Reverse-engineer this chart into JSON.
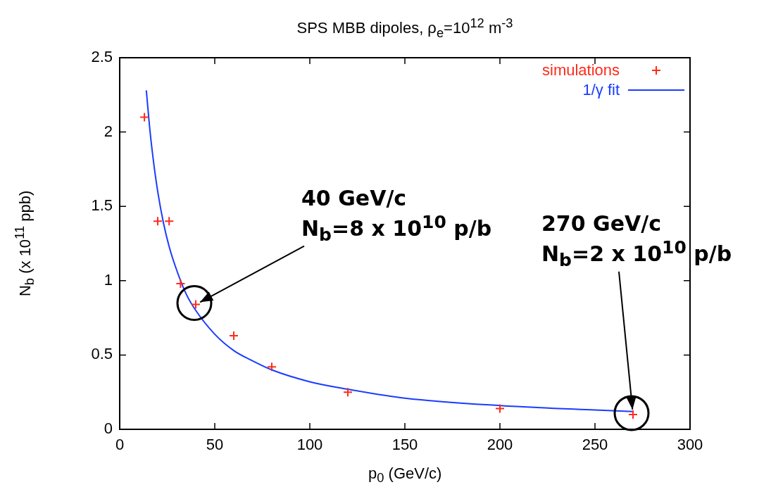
{
  "chart_data": {
    "type": "scatter",
    "title": "SPS MBB dipoles, ρ$_{e}$=10$^{12}$ m$^{-3}$",
    "xlabel": "p$_{0}$ (GeV/c)",
    "ylabel": "N$_{b}$ (x 10$^{11}$ ppb)",
    "xlim": [
      0,
      300
    ],
    "xticks": [
      0,
      50,
      100,
      150,
      200,
      250,
      300
    ],
    "ylim": [
      0,
      2.5
    ],
    "yticks": [
      0,
      0.5,
      1,
      1.5,
      2,
      2.5
    ],
    "legend": "top right",
    "series": [
      {
        "name": "simulations",
        "type": "scatter",
        "marker": "cross",
        "color": "#ff2a1a",
        "x": [
          13,
          20,
          26,
          32,
          40,
          60,
          80,
          120,
          200,
          270
        ],
        "values": [
          2.1,
          1.4,
          1.4,
          0.98,
          0.84,
          0.63,
          0.42,
          0.25,
          0.14,
          0.1
        ]
      },
      {
        "name": "1/γ fit",
        "type": "line",
        "color": "#1a3cff",
        "x": [
          14,
          16,
          18,
          20,
          23,
          26,
          30,
          35,
          40,
          50,
          60,
          70,
          80,
          100,
          120,
          150,
          200,
          250,
          270
        ],
        "values": [
          2.28,
          2,
          1.78,
          1.6,
          1.39,
          1.23,
          1.07,
          0.91,
          0.8,
          0.64,
          0.53,
          0.46,
          0.4,
          0.32,
          0.27,
          0.21,
          0.16,
          0.13,
          0.12
        ]
      }
    ],
    "annotations": [
      {
        "text": "40 GeV/c\nN$_{b}$=8 x 10$^{10}$ p/b",
        "x": 40,
        "y": 0.84
      },
      {
        "text": "270 GeV/c\nN$_{b}$=2 x 10$^{10}$ p/b",
        "x": 270,
        "y": 0.1
      }
    ]
  }
}
